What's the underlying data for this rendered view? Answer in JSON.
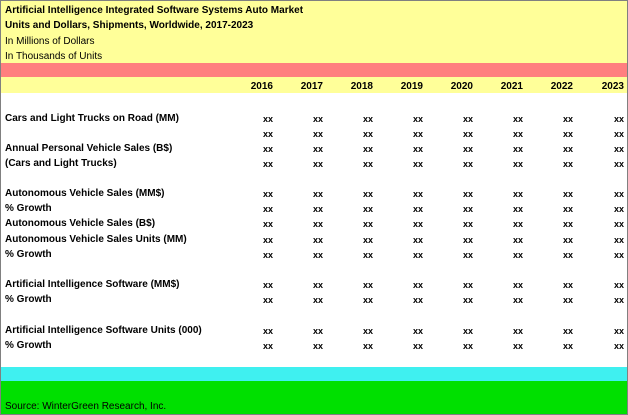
{
  "header": {
    "title": "Artificial Intelligence Integrated Software Systems Auto Market",
    "subtitle": "Units and Dollars, Shipments, Worldwide, 2017-2023",
    "unit_dollars": "In Millions of Dollars",
    "unit_units": "In Thousands of Units"
  },
  "years": [
    "2016",
    "2017",
    "2018",
    "2019",
    "2020",
    "2021",
    "2022",
    "2023"
  ],
  "cell_value": "xx",
  "rows": [
    {
      "label": "Cars and Light Trucks on Road (MM)",
      "has_values": true
    },
    {
      "label": "",
      "has_values": true
    },
    {
      "label": "Annual Personal Vehicle Sales (B$)",
      "has_values": true
    },
    {
      "label": "(Cars and Light Trucks)",
      "has_values": true
    },
    {
      "label": "Autonomous Vehicle Sales (MM$)",
      "has_values": true
    },
    {
      "label": "% Growth",
      "has_values": true
    },
    {
      "label": "Autonomous Vehicle Sales (B$)",
      "has_values": true
    },
    {
      "label": "Autonomous Vehicle Sales Units (MM)",
      "has_values": true
    },
    {
      "label": "% Growth",
      "has_values": true
    },
    {
      "label": "Artificial Intelligence Software (MM$)",
      "has_values": true
    },
    {
      "label": "% Growth",
      "has_values": true
    },
    {
      "label": "Artificial Intelligence Software Units (000)",
      "has_values": true
    },
    {
      "label": "% Growth",
      "has_values": true
    }
  ],
  "footer": {
    "source": "Source:   WinterGreen Research, Inc."
  }
}
